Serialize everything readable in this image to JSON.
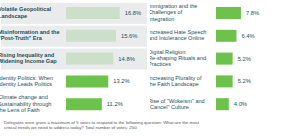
{
  "chart_data": [
    {
      "type": "bar",
      "orientation": "horizontal",
      "categories": [
        "Volatile Geopolitical Landscape",
        "Misinformation and the \"Post-Truth\" Era",
        "Rising Inequality and Widening Income Gap",
        "Identity Politics: When Identity Leads Politics",
        "Climate change and Sustainability through the Lens of Faith"
      ],
      "values": [
        16.8,
        15.6,
        14.8,
        13.2,
        11.2
      ],
      "value_labels": [
        "16.8%",
        "15.6%",
        "14.8%",
        "13.2%",
        "11.2%"
      ],
      "data_labels": true,
      "color": "#6cc24a",
      "xlim": [
        0,
        20
      ],
      "tick_labels": "y",
      "annotations": [
        "Delegates were given a maximum of 5 votes to respond to the following question: What are the most critical trends we need to address today? Total number of votes: 250"
      ]
    },
    {
      "type": "bar",
      "orientation": "horizontal",
      "categories": [
        "Immigration and the Challenges of Integration",
        "Increased Hate Speech and Intolerance Online",
        "Digital Religion: Re-shaping Rituals and Practices",
        "Increasing Plurality of the Faith Landscape",
        "Rise of \"Wokeism\" and \"Cancel\" Culture"
      ],
      "values": [
        7.8,
        6.4,
        5.2,
        5.2,
        4.0
      ],
      "value_labels": [
        "7.8%",
        "6.4%",
        "5.2%",
        "5.2%",
        "4.0%"
      ],
      "data_labels": true,
      "color": "#6cc24a",
      "xlim": [
        0,
        20
      ],
      "tick_labels": "y"
    }
  ]
}
